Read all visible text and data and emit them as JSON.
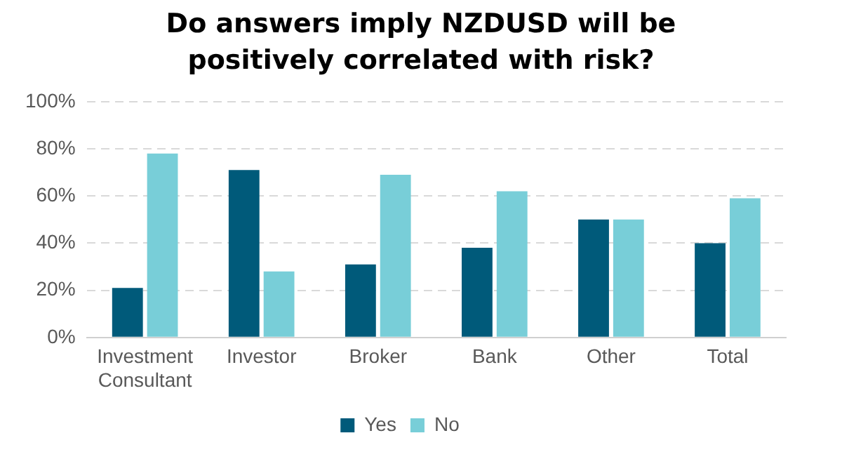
{
  "chart_data": {
    "type": "bar",
    "title": "Do answers imply NZDUSD will be positively correlated with risk?",
    "categories": [
      "Investment Consultant",
      "Investor",
      "Broker",
      "Bank",
      "Other",
      "Total"
    ],
    "series": [
      {
        "name": "Yes",
        "color": "#005a7a",
        "values": [
          21,
          71,
          31,
          38,
          50,
          40
        ]
      },
      {
        "name": "No",
        "color": "#78ced8",
        "values": [
          78,
          28,
          69,
          62,
          50,
          59
        ]
      }
    ],
    "ylim": [
      0,
      100
    ],
    "yticks": [
      {
        "value": 0,
        "label": "0%"
      },
      {
        "value": 20,
        "label": "20%"
      },
      {
        "value": 40,
        "label": "40%"
      },
      {
        "value": 60,
        "label": "60%"
      },
      {
        "value": 80,
        "label": "80%"
      },
      {
        "value": 100,
        "label": "100%"
      }
    ],
    "grid": "y",
    "legend": "bottom"
  }
}
